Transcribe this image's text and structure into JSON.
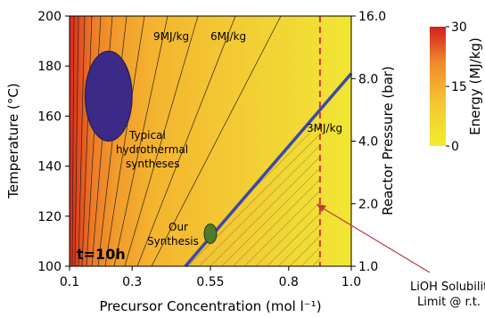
{
  "chart_data": {
    "type": "heatmap",
    "xlabel": "Precursor Concentration (mol l⁻¹)",
    "ylabel_left": "Temperature (°C)",
    "ylabel_right": "Reactor Pressure (bar)",
    "x_ticks": [
      "0.1",
      "0.3",
      "0.55",
      "0.8",
      "1.0"
    ],
    "x_tick_values": [
      0.1,
      0.3,
      0.55,
      0.8,
      1.0
    ],
    "xlim": [
      0.1,
      1.0
    ],
    "y_ticks": [
      "100",
      "120",
      "140",
      "160",
      "180",
      "200"
    ],
    "y_tick_values": [
      100,
      120,
      140,
      160,
      180,
      200
    ],
    "ylim": [
      100,
      200
    ],
    "right_ticks": [
      "1.0",
      "2.0",
      "4.0",
      "8.0",
      "16.0"
    ],
    "right_tick_values": [
      1,
      2,
      4,
      8,
      16
    ],
    "right_scale": "log",
    "colorbar": {
      "label": "Energy (MJ/kg)",
      "ticks": [
        "0",
        "15",
        "30"
      ],
      "tick_values": [
        0,
        15,
        30
      ],
      "range": [
        0,
        30
      ],
      "colors": [
        "#f2ec2c",
        "#f5c832",
        "#ef8a2a",
        "#d21f1f"
      ]
    },
    "contours": [
      {
        "label": "9MJ/kg",
        "value": 9
      },
      {
        "label": "6MJ/kg",
        "value": 6
      },
      {
        "label": "3MJ/kg",
        "value": 3
      }
    ],
    "annotations": {
      "time": "t=10h",
      "typical_region": [
        "Typical",
        "hydrothermal",
        "syntheses"
      ],
      "our_synthesis": [
        "Our",
        "Synthesis"
      ],
      "solubility": [
        "LiOH Solubility",
        "Limit @ r.t."
      ]
    },
    "typical_region": {
      "cx": 0.225,
      "cy": 168,
      "rx": 0.075,
      "ry": 18,
      "color": "#3b2a86"
    },
    "our_synthesis": {
      "x": 0.55,
      "y": 113,
      "color": "#4f7a2a"
    },
    "boundary_line": {
      "x": [
        0.47,
        1.0
      ],
      "y": [
        100,
        177
      ],
      "color": "#3d4aa6"
    },
    "solubility_limit_x": 0.9,
    "solubility_color": "#d9343f"
  }
}
